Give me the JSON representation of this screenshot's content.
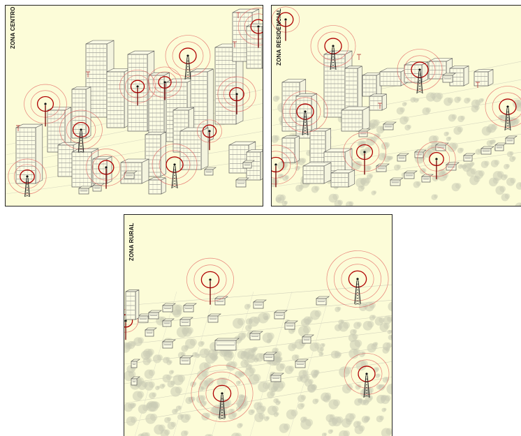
{
  "panels": {
    "centro": {
      "label": "ZONA CENTRO"
    },
    "residencial": {
      "label": "ZONA RESIDENCIAL"
    },
    "rural": {
      "label": "ZONA RURAL"
    }
  },
  "colors": {
    "background": "#fcfcd8",
    "ring": "#e05050",
    "ring_dark": "#b00000",
    "building": "#555555",
    "tree": "#c8cab4"
  },
  "icons": [
    "antenna-tower-icon",
    "signal-ring-icon",
    "building-icon",
    "house-icon",
    "tree-icon"
  ]
}
